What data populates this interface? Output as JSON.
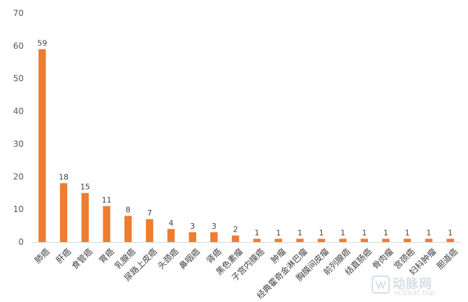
{
  "chart_data": {
    "type": "bar",
    "categories": [
      "肺癌",
      "肝癌",
      "食管癌",
      "胃癌",
      "乳腺癌",
      "尿路上皮癌",
      "头颈癌",
      "鼻咽癌",
      "肾癌",
      "黑色素瘤",
      "子宫内膜癌",
      "肿瘤",
      "经典霍奇金淋巴瘤",
      "胸膜间皮瘤",
      "前列腺癌",
      "结直肠癌",
      "骨肉瘤",
      "宫颈癌",
      "妇科肿瘤",
      "胆道癌"
    ],
    "values": [
      59,
      18,
      15,
      11,
      8,
      7,
      4,
      3,
      3,
      2,
      1,
      1,
      1,
      1,
      1,
      1,
      1,
      1,
      1,
      1
    ],
    "ylim": [
      0,
      70
    ],
    "yticks": [
      0,
      10,
      20,
      30,
      40,
      50,
      60,
      70
    ],
    "bar_color": "#ED7D31",
    "grid": false,
    "title": "",
    "xlabel": "",
    "ylabel": ""
  },
  "watermark": {
    "brand_text": "动脉网",
    "url_text": "vcbeat.top"
  }
}
